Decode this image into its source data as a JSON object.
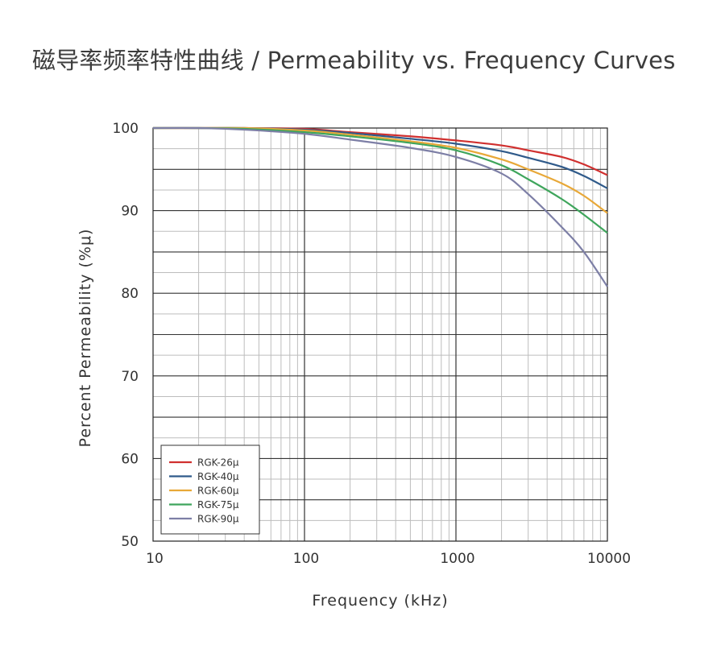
{
  "chart_data": {
    "type": "line",
    "title": "磁导率频率特性曲线 / Permeability vs. Frequency Curves",
    "xlabel": "Frequency (kHz)",
    "ylabel": "Percent Permeability (%μ)",
    "xscale": "log",
    "xlim": [
      10,
      10000
    ],
    "ylim": [
      50,
      100
    ],
    "xticks": [
      "10",
      "100",
      "1000",
      "10000"
    ],
    "yticks": [
      "50",
      "60",
      "70",
      "80",
      "90",
      "100"
    ],
    "grid": true,
    "legend_position": "bottom-left",
    "series": [
      {
        "name": "RGK-26μ",
        "color": "#d0302f",
        "x": [
          10,
          20,
          40,
          100,
          200,
          500,
          1000,
          2000,
          3000,
          5000,
          7000,
          10000
        ],
        "y": [
          100,
          100,
          100,
          99.9,
          99.5,
          99,
          98.5,
          97.9,
          97.3,
          96.5,
          95.6,
          94.3
        ]
      },
      {
        "name": "RGK-40μ",
        "color": "#2f5a8a",
        "x": [
          10,
          20,
          40,
          100,
          200,
          500,
          1000,
          2000,
          3000,
          5000,
          7000,
          10000
        ],
        "y": [
          100,
          100,
          100,
          99.8,
          99.4,
          98.7,
          98.1,
          97.2,
          96.4,
          95.3,
          94.2,
          92.7
        ]
      },
      {
        "name": "RGK-60μ",
        "color": "#e8a838",
        "x": [
          10,
          20,
          40,
          100,
          200,
          500,
          1000,
          2000,
          3000,
          5000,
          7000,
          10000
        ],
        "y": [
          100,
          100,
          100,
          99.7,
          99.2,
          98.4,
          97.6,
          96.2,
          95,
          93.3,
          91.8,
          89.7
        ]
      },
      {
        "name": "RGK-75μ",
        "color": "#3fa55c",
        "x": [
          10,
          20,
          40,
          100,
          200,
          500,
          1000,
          2000,
          3000,
          5000,
          7000,
          10000
        ],
        "y": [
          100,
          100,
          99.9,
          99.5,
          99,
          98.2,
          97.3,
          95.5,
          93.8,
          91.4,
          89.5,
          87.3
        ]
      },
      {
        "name": "RGK-90μ",
        "color": "#7d7fa6",
        "x": [
          10,
          20,
          40,
          100,
          200,
          500,
          1000,
          2000,
          3000,
          5000,
          7000,
          10000
        ],
        "y": [
          100,
          100,
          99.8,
          99.3,
          98.6,
          97.6,
          96.5,
          94.5,
          92,
          88,
          85,
          80.8
        ]
      }
    ]
  }
}
